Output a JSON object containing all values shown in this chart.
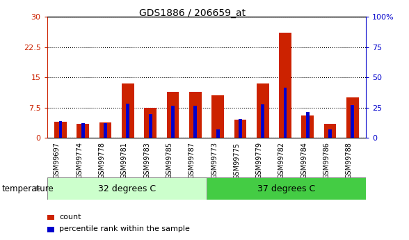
{
  "title": "GDS1886 / 206659_at",
  "samples": [
    "GSM99697",
    "GSM99774",
    "GSM99778",
    "GSM99781",
    "GSM99783",
    "GSM99785",
    "GSM99787",
    "GSM99773",
    "GSM99775",
    "GSM99779",
    "GSM99782",
    "GSM99784",
    "GSM99786",
    "GSM99788"
  ],
  "count_values": [
    4.0,
    3.5,
    3.8,
    13.5,
    7.5,
    11.5,
    11.5,
    10.5,
    4.5,
    13.5,
    26.0,
    5.5,
    3.5,
    10.0
  ],
  "percentile_values": [
    14.0,
    12.0,
    12.5,
    28.5,
    20.0,
    26.5,
    26.5,
    7.0,
    15.5,
    28.0,
    41.5,
    21.5,
    7.0,
    27.0
  ],
  "group1_label": "32 degrees C",
  "group2_label": "37 degrees C",
  "group1_count": 7,
  "group2_count": 7,
  "group1_color": "#ccffcc",
  "group2_color": "#44cc44",
  "bar_color_red": "#cc2200",
  "bar_color_blue": "#0000cc",
  "left_axis_color": "#cc2200",
  "right_axis_color": "#0000cc",
  "ylim_left": [
    0,
    30
  ],
  "ylim_right": [
    0,
    100
  ],
  "yticks_left": [
    0,
    7.5,
    15,
    22.5,
    30
  ],
  "yticks_right": [
    0,
    25,
    50,
    75,
    100
  ],
  "ytick_labels_left": [
    "0",
    "7.5",
    "15",
    "22.5",
    "30"
  ],
  "ytick_labels_right": [
    "0",
    "25",
    "50",
    "75",
    "100%"
  ],
  "background_color": "#ffffff",
  "plot_bg_color": "#ffffff",
  "xticklabel_bg": "#cccccc",
  "grid_color": "#000000",
  "temperature_label": "temperature",
  "legend_count": "count",
  "legend_percentile": "percentile rank within the sample",
  "bar_width": 0.55,
  "blue_bar_width": 0.15
}
